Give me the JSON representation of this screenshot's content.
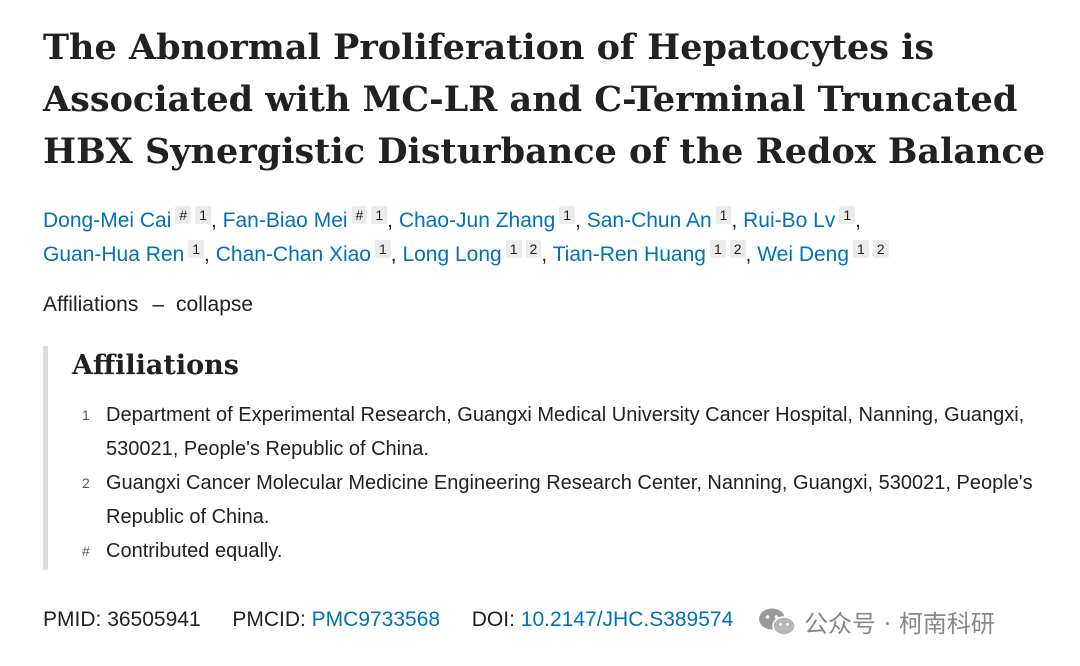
{
  "title_lines": [
    "The Abnormal Proliferation of Hepatocytes is",
    "Associated with MC-LR and C-Terminal Truncated",
    "HBX Synergistic Disturbance of the Redox Balance"
  ],
  "authors": [
    {
      "name": "Dong-Mei Cai",
      "marks": [
        "#",
        "1"
      ]
    },
    {
      "name": "Fan-Biao Mei",
      "marks": [
        "#",
        "1"
      ]
    },
    {
      "name": "Chao-Jun Zhang",
      "marks": [
        "1"
      ]
    },
    {
      "name": "San-Chun An",
      "marks": [
        "1"
      ]
    },
    {
      "name": "Rui-Bo Lv",
      "marks": [
        "1"
      ]
    },
    {
      "name": "Guan-Hua Ren",
      "marks": [
        "1"
      ]
    },
    {
      "name": "Chan-Chan Xiao",
      "marks": [
        "1"
      ]
    },
    {
      "name": "Long Long",
      "marks": [
        "1",
        "2"
      ]
    },
    {
      "name": "Tian-Ren Huang",
      "marks": [
        "1",
        "2"
      ]
    },
    {
      "name": "Wei Deng",
      "marks": [
        "1",
        "2"
      ]
    }
  ],
  "affiliations_toggle": {
    "label": "Affiliations",
    "dash": "–",
    "action": "collapse"
  },
  "affiliations": {
    "heading": "Affiliations",
    "items": [
      {
        "key": "1",
        "text": "Department of Experimental Research, Guangxi Medical University Cancer Hospital, Nanning, Guangxi, 530021, People's Republic of China."
      },
      {
        "key": "2",
        "text": "Guangxi Cancer Molecular Medicine Engineering Research Center, Nanning, Guangxi, 530021, People's Republic of China."
      },
      {
        "key": "#",
        "text": "Contributed equally."
      }
    ]
  },
  "identifiers": {
    "pmid_label": "PMID:",
    "pmid": "36505941",
    "pmcid_label": "PMCID:",
    "pmcid": "PMC9733568",
    "doi_label": "DOI:",
    "doi": "10.2147/JHC.S389574"
  },
  "watermark": {
    "icon": "wechat-icon",
    "text": "公众号 · 柯南科研"
  },
  "colors": {
    "link": "#0071bc",
    "text": "#212121",
    "badge_bg": "#ebebeb",
    "border": "#dcdcdc"
  }
}
